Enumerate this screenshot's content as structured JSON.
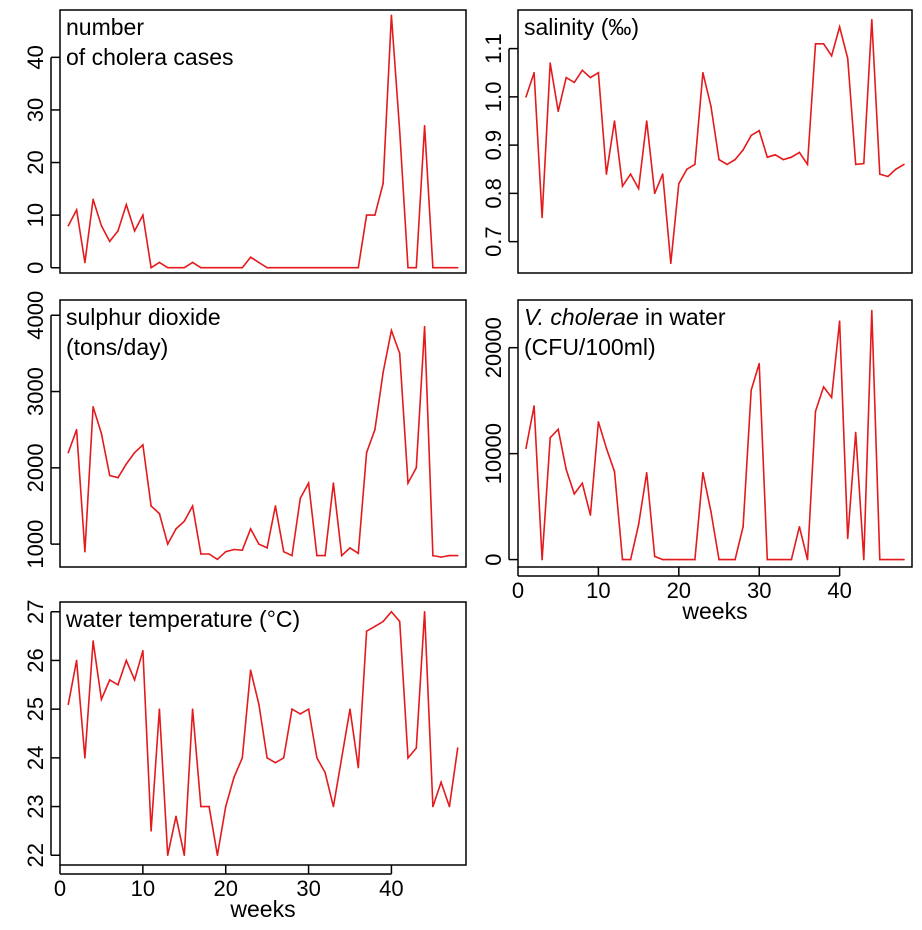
{
  "colors": {
    "series": "#e41a1c",
    "axis": "#000000",
    "background": "#ffffff"
  },
  "chart_data": [
    {
      "type": "line",
      "title_lines": [
        "number",
        "of cholera cases"
      ],
      "xlabel": "",
      "ylabel": "",
      "xlim": [
        0,
        49
      ],
      "ylim": [
        -1,
        49
      ],
      "yticks": [
        0,
        10,
        20,
        30,
        40
      ],
      "xticks": [],
      "x": [
        1,
        2,
        3,
        4,
        5,
        6,
        7,
        8,
        9,
        10,
        11,
        12,
        13,
        14,
        15,
        16,
        17,
        18,
        19,
        20,
        21,
        22,
        23,
        24,
        25,
        26,
        27,
        28,
        29,
        30,
        31,
        32,
        33,
        34,
        35,
        36,
        37,
        38,
        39,
        40,
        41,
        42,
        43,
        44,
        45,
        46,
        47,
        48
      ],
      "y": [
        8,
        11,
        1,
        13,
        8,
        5,
        7,
        12,
        7,
        10,
        0,
        1,
        0,
        0,
        0,
        1,
        0,
        0,
        0,
        0,
        0,
        0,
        2,
        1,
        0,
        0,
        0,
        0,
        0,
        0,
        0,
        0,
        0,
        0,
        0,
        0,
        10,
        10,
        16,
        48,
        26,
        0,
        0,
        27,
        0,
        0,
        0,
        0
      ]
    },
    {
      "type": "line",
      "title_lines": [
        "salinity (‰)"
      ],
      "xlabel": "",
      "ylabel": "",
      "xlim": [
        0,
        49
      ],
      "ylim": [
        0.635,
        1.18
      ],
      "yticks": [
        0.7,
        0.8,
        0.9,
        1.0,
        1.1
      ],
      "ytick_labels": [
        "0.7",
        "0.8",
        "0.9",
        "1.0",
        "1.1"
      ],
      "xticks": [],
      "x": [
        1,
        2,
        3,
        4,
        5,
        6,
        7,
        8,
        9,
        10,
        11,
        12,
        13,
        14,
        15,
        16,
        17,
        18,
        19,
        20,
        21,
        22,
        23,
        24,
        25,
        26,
        27,
        28,
        29,
        30,
        31,
        32,
        33,
        34,
        35,
        36,
        37,
        38,
        39,
        40,
        41,
        42,
        43,
        44,
        45,
        46,
        47,
        48
      ],
      "y": [
        1.0,
        1.05,
        0.75,
        1.07,
        0.97,
        1.04,
        1.03,
        1.055,
        1.04,
        1.05,
        0.84,
        0.95,
        0.815,
        0.84,
        0.81,
        0.95,
        0.8,
        0.84,
        0.655,
        0.82,
        0.85,
        0.86,
        1.05,
        0.98,
        0.87,
        0.86,
        0.87,
        0.89,
        0.92,
        0.93,
        0.875,
        0.88,
        0.87,
        0.875,
        0.885,
        0.86,
        1.11,
        1.11,
        1.085,
        1.145,
        1.08,
        0.86,
        0.862,
        1.16,
        0.84,
        0.835,
        0.85,
        0.86
      ]
    },
    {
      "type": "line",
      "title_lines": [
        "sulphur dioxide",
        "(tons/day)"
      ],
      "xlabel": "",
      "ylabel": "",
      "xlim": [
        0,
        49
      ],
      "ylim": [
        700,
        4200
      ],
      "yticks": [
        1000,
        2000,
        3000,
        4000
      ],
      "xticks": [],
      "x": [
        1,
        2,
        3,
        4,
        5,
        6,
        7,
        8,
        9,
        10,
        11,
        12,
        13,
        14,
        15,
        16,
        17,
        18,
        19,
        20,
        21,
        22,
        23,
        24,
        25,
        26,
        27,
        28,
        29,
        30,
        31,
        32,
        33,
        34,
        35,
        36,
        37,
        38,
        39,
        40,
        41,
        42,
        43,
        44,
        45,
        46,
        47,
        48
      ],
      "y": [
        2200,
        2500,
        900,
        2800,
        2450,
        1900,
        1870,
        2050,
        2200,
        2300,
        1500,
        1400,
        1000,
        1200,
        1300,
        1500,
        870,
        870,
        800,
        900,
        930,
        920,
        1200,
        1000,
        950,
        1500,
        900,
        850,
        1600,
        1800,
        850,
        850,
        1800,
        850,
        950,
        880,
        2200,
        2500,
        3250,
        3800,
        3500,
        1800,
        2000,
        3850,
        850,
        830,
        850,
        850
      ]
    },
    {
      "type": "line",
      "title_lines": [
        "V. cholerae",
        " in water",
        "(CFU/100ml)"
      ],
      "xlabel": "weeks",
      "ylabel": "",
      "xlim": [
        0,
        49
      ],
      "ylim": [
        -700,
        24500
      ],
      "yticks": [
        0,
        10000,
        20000
      ],
      "xticks": [
        0,
        10,
        20,
        30,
        40
      ],
      "x": [
        1,
        2,
        3,
        4,
        5,
        6,
        7,
        8,
        9,
        10,
        11,
        12,
        13,
        14,
        15,
        16,
        17,
        18,
        19,
        20,
        21,
        22,
        23,
        24,
        25,
        26,
        27,
        28,
        29,
        30,
        31,
        32,
        33,
        34,
        35,
        36,
        37,
        38,
        39,
        40,
        41,
        42,
        43,
        44,
        45,
        46,
        47,
        48
      ],
      "y": [
        10500,
        14500,
        0,
        11500,
        12300,
        8500,
        6200,
        7200,
        4200,
        13000,
        10500,
        8300,
        0,
        0,
        3300,
        8200,
        300,
        0,
        0,
        0,
        0,
        0,
        8200,
        4500,
        0,
        0,
        0,
        3100,
        16000,
        18500,
        0,
        0,
        0,
        0,
        3100,
        0,
        14000,
        16300,
        15300,
        22500,
        2000,
        12000,
        0,
        23500,
        0,
        0,
        0,
        0
      ]
    },
    {
      "type": "line",
      "title_lines": [
        "water temperature (°C)"
      ],
      "xlabel": "weeks",
      "ylabel": "",
      "xlim": [
        0,
        49
      ],
      "ylim": [
        21.8,
        27.2
      ],
      "yticks": [
        22,
        23,
        24,
        25,
        26,
        27
      ],
      "xticks": [
        0,
        10,
        20,
        30,
        40
      ],
      "x": [
        1,
        2,
        3,
        4,
        5,
        6,
        7,
        8,
        9,
        10,
        11,
        12,
        13,
        14,
        15,
        16,
        17,
        18,
        19,
        20,
        21,
        22,
        23,
        24,
        25,
        26,
        27,
        28,
        29,
        30,
        31,
        32,
        33,
        34,
        35,
        36,
        37,
        38,
        39,
        40,
        41,
        42,
        43,
        44,
        45,
        46,
        47,
        48
      ],
      "y": [
        25.1,
        26.0,
        24.0,
        26.4,
        25.2,
        25.6,
        25.5,
        26.0,
        25.6,
        26.2,
        22.5,
        25.0,
        22.0,
        22.8,
        22.0,
        25.0,
        23.0,
        23.0,
        22.0,
        23.0,
        23.6,
        24.0,
        25.8,
        25.1,
        24.0,
        23.9,
        24.0,
        25.0,
        24.9,
        25.0,
        24.0,
        23.7,
        23.0,
        24.0,
        25.0,
        23.8,
        26.6,
        26.7,
        26.8,
        27.0,
        26.8,
        24.0,
        24.2,
        27.0,
        23.0,
        23.5,
        23.0,
        24.2
      ]
    }
  ]
}
